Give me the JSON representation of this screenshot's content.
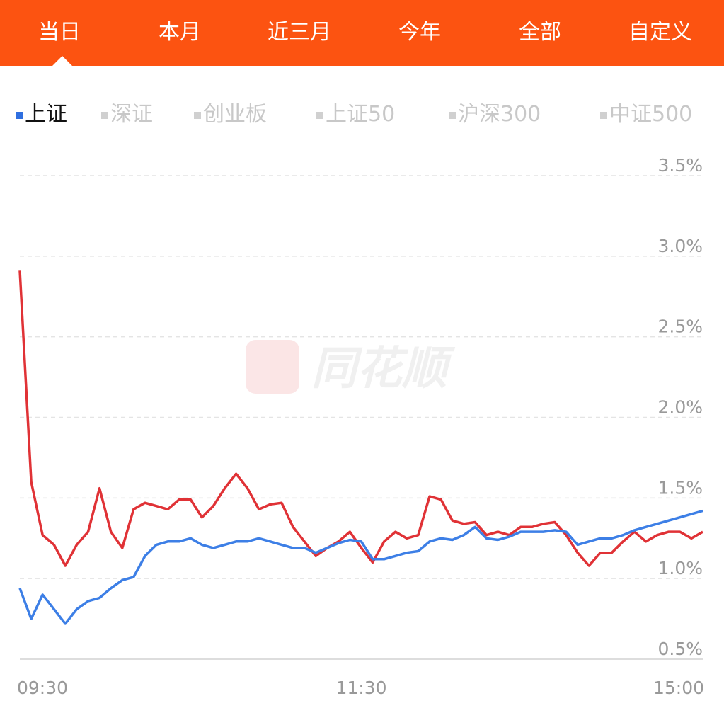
{
  "period_tabs": [
    "当日",
    "本月",
    "近三月",
    "今年",
    "全部",
    "自定义"
  ],
  "index_tabs": [
    "上证",
    "深证",
    "创业板",
    "上证50",
    "沪深300",
    "中证500"
  ],
  "watermark": "同花顺",
  "chart_data": {
    "type": "line",
    "x": [
      0,
      4,
      8,
      12,
      16,
      20,
      24,
      28,
      32,
      36,
      40,
      44,
      48,
      52,
      56,
      60,
      64,
      68,
      72,
      76,
      80,
      84,
      88,
      92,
      96,
      100,
      104,
      108,
      112,
      116,
      120,
      124,
      128,
      132,
      136,
      140,
      144,
      148,
      152,
      156,
      160,
      164,
      168,
      172,
      176,
      180,
      184,
      188,
      192,
      196,
      200,
      204,
      208,
      212,
      216,
      220,
      224,
      228,
      232,
      236,
      240
    ],
    "xlim": [
      0,
      240
    ],
    "xticks": [
      {
        "value": 0,
        "label": "09:30"
      },
      {
        "value": 120,
        "label": "11:30"
      },
      {
        "value": 240,
        "label": "15:00"
      }
    ],
    "ylim": [
      0.5,
      3.5
    ],
    "yticks": [
      {
        "value": 0.5,
        "label": "0.5%"
      },
      {
        "value": 1.0,
        "label": "1.0%"
      },
      {
        "value": 1.5,
        "label": "1.5%"
      },
      {
        "value": 2.0,
        "label": "2.0%"
      },
      {
        "value": 2.5,
        "label": "2.5%"
      },
      {
        "value": 3.0,
        "label": "3.0%"
      },
      {
        "value": 3.5,
        "label": "3.5%"
      }
    ],
    "grid": true,
    "series": [
      {
        "color": "#e03236",
        "values": [
          2.91,
          1.6,
          1.27,
          1.21,
          1.08,
          1.21,
          1.29,
          1.56,
          1.29,
          1.19,
          1.43,
          1.47,
          1.45,
          1.43,
          1.49,
          1.49,
          1.38,
          1.45,
          1.56,
          1.65,
          1.56,
          1.43,
          1.46,
          1.47,
          1.32,
          1.23,
          1.14,
          1.19,
          1.23,
          1.29,
          1.19,
          1.1,
          1.23,
          1.29,
          1.25,
          1.27,
          1.51,
          1.49,
          1.36,
          1.34,
          1.35,
          1.27,
          1.29,
          1.27,
          1.32,
          1.32,
          1.34,
          1.35,
          1.27,
          1.16,
          1.08,
          1.16,
          1.16,
          1.23,
          1.29,
          1.23,
          1.27,
          1.29,
          1.29,
          1.25,
          1.29
        ]
      },
      {
        "color": "#3d7fe6",
        "values": [
          0.94,
          0.75,
          0.9,
          0.81,
          0.72,
          0.81,
          0.86,
          0.88,
          0.94,
          0.99,
          1.01,
          1.14,
          1.21,
          1.23,
          1.23,
          1.25,
          1.21,
          1.19,
          1.21,
          1.23,
          1.23,
          1.25,
          1.23,
          1.21,
          1.19,
          1.19,
          1.16,
          1.19,
          1.22,
          1.24,
          1.23,
          1.12,
          1.12,
          1.14,
          1.16,
          1.17,
          1.23,
          1.25,
          1.24,
          1.27,
          1.32,
          1.25,
          1.24,
          1.26,
          1.29,
          1.29,
          1.29,
          1.3,
          1.29,
          1.21,
          1.23,
          1.25,
          1.25,
          1.27,
          1.3,
          1.32,
          1.34,
          1.36,
          1.38,
          1.4,
          1.42
        ]
      }
    ]
  }
}
